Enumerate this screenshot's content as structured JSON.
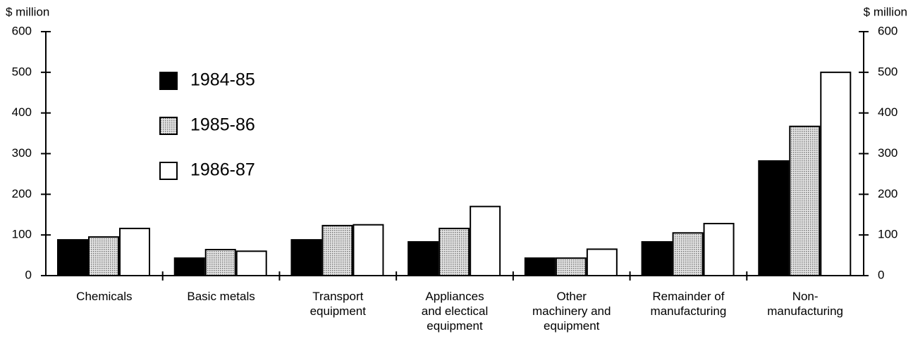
{
  "chart_data": {
    "type": "bar",
    "ylabel": "$ million",
    "y2label": "$ million",
    "categories": [
      "Chemicals",
      "Basic metals",
      "Transport\nequipment",
      "Appliances\nand electical\nequipment",
      "Other\nmachinery and\nequipment",
      "Remainder of\nmanufacturing",
      "Non-\nmanufacturing"
    ],
    "series": [
      {
        "name": "1984-85",
        "color": "#000000",
        "values": [
          88,
          43,
          88,
          83,
          43,
          83,
          282
        ]
      },
      {
        "name": "1985-86",
        "color": "#c4c4c4",
        "values": [
          95,
          64,
          123,
          116,
          43,
          105,
          367
        ]
      },
      {
        "name": "1986-87",
        "color": "#ffffff",
        "values": [
          116,
          60,
          125,
          170,
          65,
          128,
          500
        ]
      }
    ],
    "ylim": [
      0,
      600
    ],
    "yticks": [
      0,
      100,
      200,
      300,
      400,
      500,
      600
    ],
    "y2lim": [
      0,
      600
    ],
    "y2ticks": [
      0,
      100,
      200,
      300,
      400,
      500,
      600
    ]
  }
}
